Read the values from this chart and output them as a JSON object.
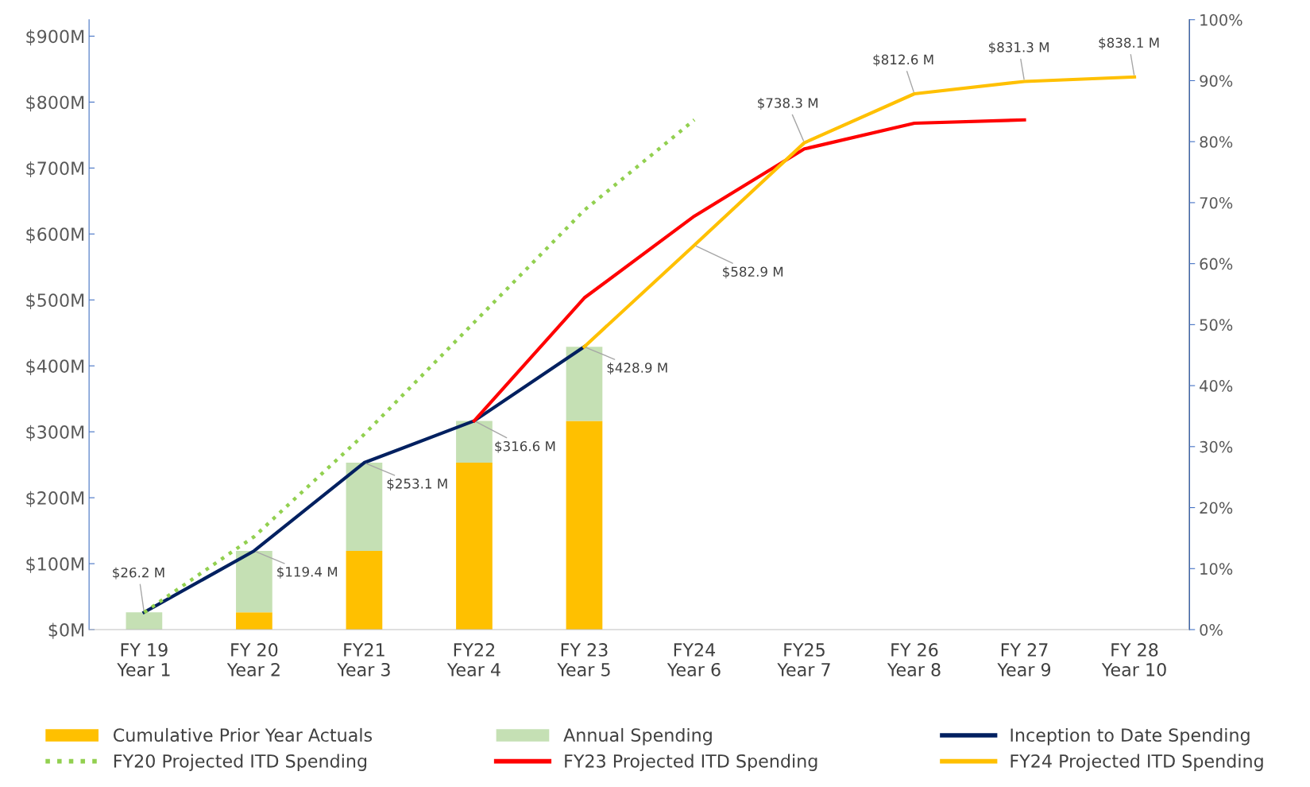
{
  "chart_data": {
    "type": "bar",
    "stacked": true,
    "categories": [
      "FY 19\nYear 1",
      "FY 20\nYear 2",
      "FY21\nYear 3",
      "FY22\nYear 4",
      "FY 23\nYear 5",
      "FY24\nYear 6",
      "FY25\nYear 7",
      "FY 26\nYear 8",
      "FY 27\nYear 9",
      "FY 28\nYear 10"
    ],
    "series": [
      {
        "name": "Cumulative Prior Year Actuals",
        "color": "#ffc000",
        "values": [
          0,
          26.2,
          119.4,
          253.1,
          316.6,
          null,
          null,
          null,
          null,
          null
        ]
      },
      {
        "name": "Annual Spending",
        "color": "#c5e0b4",
        "values": [
          26.2,
          93.2,
          133.7,
          63.5,
          112.3,
          null,
          null,
          null,
          null,
          null
        ]
      },
      {
        "name": "Inception to Date Spending",
        "type": "line",
        "color": "#002060",
        "line_style": "solid",
        "values": [
          26.2,
          119.4,
          253.1,
          316.6,
          428.9,
          null,
          null,
          null,
          null,
          null
        ]
      },
      {
        "name": "FY20 Projected ITD Spending",
        "type": "line",
        "color": "#92d050",
        "line_style": "dotted",
        "values": [
          26,
          141,
          296,
          466,
          636,
          773,
          null,
          null,
          null,
          null
        ]
      },
      {
        "name": "FY23 Projected ITD Spending",
        "type": "line",
        "color": "#ff0000",
        "line_style": "solid",
        "values": [
          null,
          null,
          null,
          316.6,
          503,
          627,
          729,
          768,
          773,
          null
        ]
      },
      {
        "name": "FY24 Projected ITD Spending",
        "type": "line",
        "color": "#ffc000",
        "line_style": "solid",
        "values": [
          null,
          null,
          null,
          null,
          428.9,
          582.9,
          738.3,
          812.6,
          831.3,
          838.1
        ]
      }
    ],
    "ylim": [
      0,
      925
    ],
    "yticks": [
      {
        "value": 0,
        "label": "$0M"
      },
      {
        "value": 100,
        "label": "$100M"
      },
      {
        "value": 200,
        "label": "$200M"
      },
      {
        "value": 300,
        "label": "$300M"
      },
      {
        "value": 400,
        "label": "$400M"
      },
      {
        "value": 500,
        "label": "$500M"
      },
      {
        "value": 600,
        "label": "$600M"
      },
      {
        "value": 700,
        "label": "$700M"
      },
      {
        "value": 800,
        "label": "$800M"
      },
      {
        "value": 900,
        "label": "$900M"
      }
    ],
    "y2lim": [
      0,
      100
    ],
    "y2ticks": [
      {
        "value": 0,
        "label": "0%"
      },
      {
        "value": 10,
        "label": "10%"
      },
      {
        "value": 20,
        "label": "20%"
      },
      {
        "value": 30,
        "label": "30%"
      },
      {
        "value": 40,
        "label": "40%"
      },
      {
        "value": 50,
        "label": "50%"
      },
      {
        "value": 60,
        "label": "60%"
      },
      {
        "value": 70,
        "label": "70%"
      },
      {
        "value": 80,
        "label": "80%"
      },
      {
        "value": 90,
        "label": "90%"
      },
      {
        "value": 100,
        "label": "100%"
      }
    ],
    "annotations": [
      {
        "text": "$26.2 M",
        "x": "FY 19\nYear 1",
        "y": 26.2
      },
      {
        "text": "$119.4 M",
        "x": "FY 20\nYear 2",
        "y": 119.4
      },
      {
        "text": "$253.1 M",
        "x": "FY21\nYear 3",
        "y": 253.1
      },
      {
        "text": "$316.6 M",
        "x": "FY22\nYear 4",
        "y": 316.6
      },
      {
        "text": "$428.9 M",
        "x": "FY 23\nYear 5",
        "y": 428.9
      },
      {
        "text": "$582.9 M",
        "x": "FY24\nYear 6",
        "y": 582.9
      },
      {
        "text": "$738.3 M",
        "x": "FY25\nYear 7",
        "y": 738.3
      },
      {
        "text": "$812.6 M",
        "x": "FY 26\nYear 8",
        "y": 812.6
      },
      {
        "text": "$831.3 M",
        "x": "FY 27\nYear 9",
        "y": 831.3
      },
      {
        "text": "$838.1 M",
        "x": "FY 28\nYear 10",
        "y": 838.1
      }
    ],
    "grid": false,
    "legend": "bottom"
  }
}
